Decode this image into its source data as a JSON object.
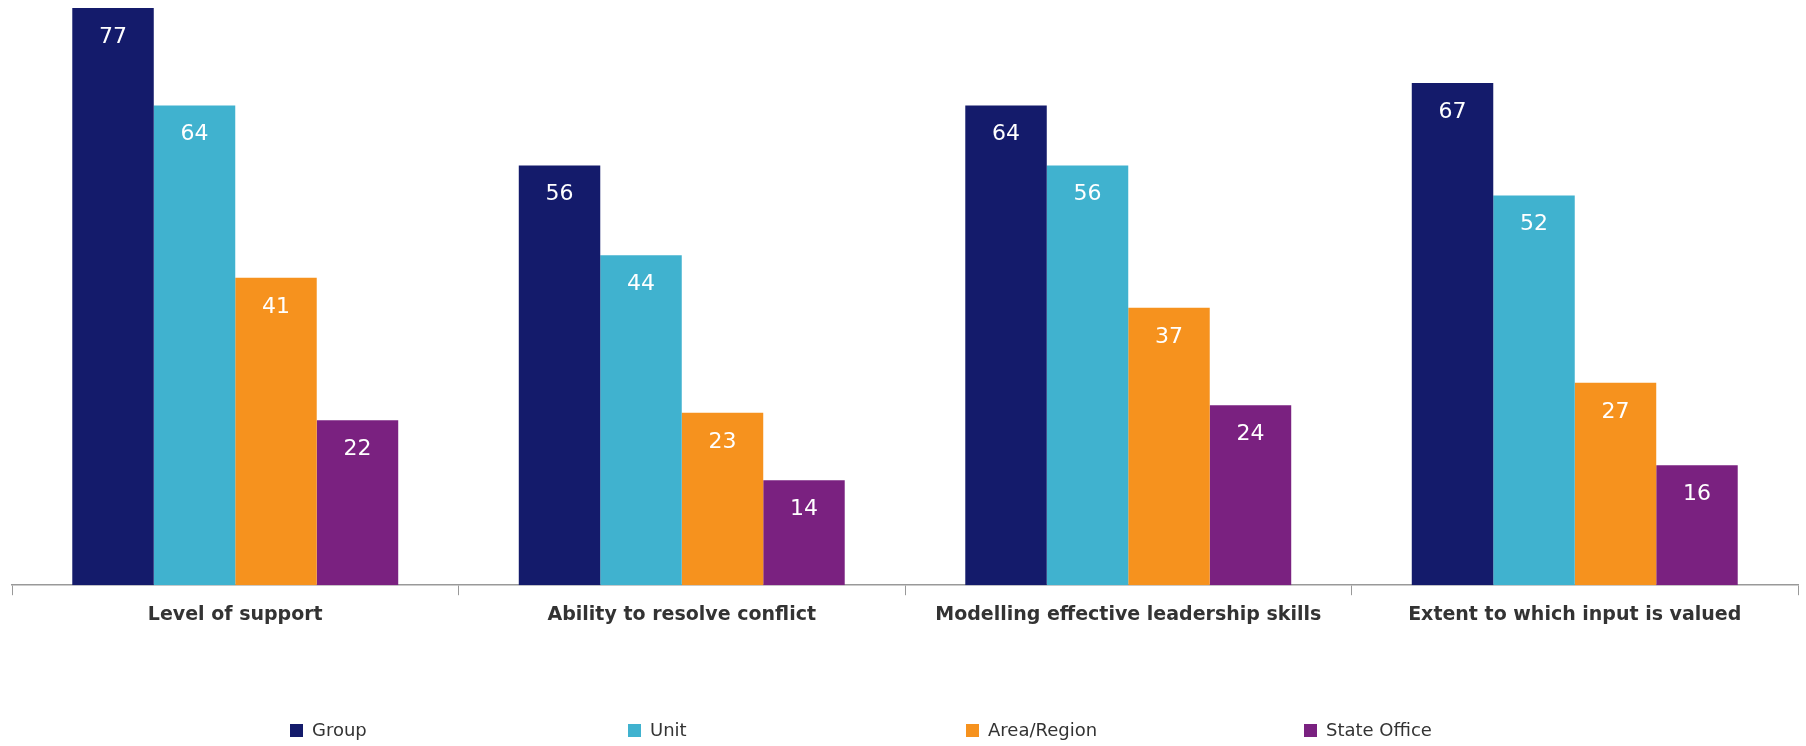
{
  "chart_data": {
    "type": "bar",
    "categories": [
      "Level of support",
      "Ability to resolve conflict",
      "Modelling effective leadership skills",
      "Extent to which input is valued"
    ],
    "series": [
      {
        "name": "Group",
        "color": "#141b6b",
        "values": [
          77,
          56,
          64,
          67
        ]
      },
      {
        "name": "Unit",
        "color": "#40b2cf",
        "values": [
          64,
          44,
          56,
          52
        ]
      },
      {
        "name": "Area/Region",
        "color": "#f6921e",
        "values": [
          41,
          23,
          37,
          27
        ]
      },
      {
        "name": "State Office",
        "color": "#7a2180",
        "values": [
          22,
          14,
          24,
          16
        ]
      }
    ],
    "data_labels": true,
    "legend": "bottom",
    "grid": false,
    "tick_labels": "x"
  }
}
